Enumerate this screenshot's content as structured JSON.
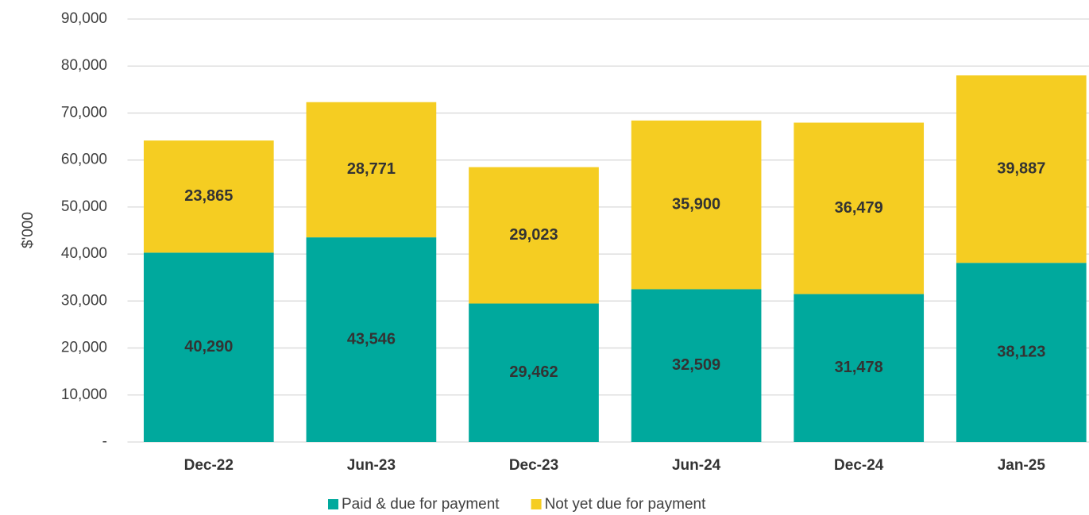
{
  "chart_data": {
    "type": "stacked_bar",
    "y_label": "$'000",
    "categories": [
      "Dec-22",
      "Jun-23",
      "Dec-23",
      "Jun-24",
      "Dec-24",
      "Jan-25"
    ],
    "series": [
      {
        "name": "Paid & due for payment",
        "color": "#00a99d",
        "values": [
          40290,
          43546,
          29462,
          32509,
          31478,
          38123
        ],
        "value_labels": [
          "40,290",
          "43,546",
          "29,462",
          "32,509",
          "31,478",
          "38,123"
        ]
      },
      {
        "name": "Not yet due for payment",
        "color": "#f5cd22",
        "values": [
          23865,
          28771,
          29023,
          35900,
          36479,
          39887
        ],
        "value_labels": [
          "23,865",
          "28,771",
          "29,023",
          "35,900",
          "36,479",
          "39,887"
        ]
      }
    ],
    "ylim": [
      0,
      90000
    ],
    "yticks": [
      {
        "value": 0,
        "label": "-"
      },
      {
        "value": 10000,
        "label": "10,000"
      },
      {
        "value": 20000,
        "label": "20,000"
      },
      {
        "value": 30000,
        "label": "30,000"
      },
      {
        "value": 40000,
        "label": "40,000"
      },
      {
        "value": 50000,
        "label": "50,000"
      },
      {
        "value": 60000,
        "label": "60,000"
      },
      {
        "value": 70000,
        "label": "70,000"
      },
      {
        "value": 80000,
        "label": "80,000"
      },
      {
        "value": 90000,
        "label": "90,000"
      }
    ],
    "grid": true,
    "legend": "bottom"
  }
}
